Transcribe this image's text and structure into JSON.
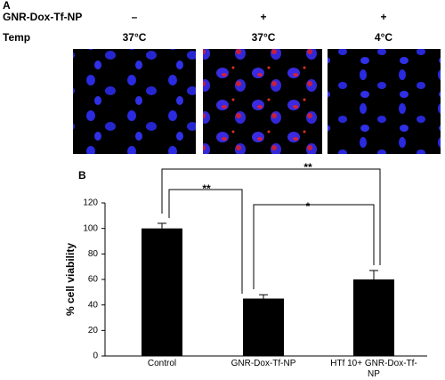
{
  "panel_a": {
    "label": "A",
    "row_labels": [
      "GNR-Dox-Tf-NP",
      "Temp"
    ],
    "treatment": [
      "–",
      "+",
      "+"
    ],
    "temperature": [
      "37°C",
      "37°C",
      "4°C"
    ]
  },
  "chart_data": {
    "type": "bar",
    "panel_label": "B",
    "ylabel": "% cell viability",
    "categories": [
      "Control",
      "GNR-Dox-Tf-NP",
      "HTf 10+ GNR-Dox-Tf-NP"
    ],
    "values": [
      100,
      45,
      60
    ],
    "errors": [
      4,
      3,
      7
    ],
    "color": "#000000",
    "ylim": [
      0,
      120
    ],
    "yticks": [
      0,
      20,
      40,
      60,
      80,
      100,
      120
    ],
    "annotations": [
      "**",
      "**",
      "*"
    ]
  }
}
